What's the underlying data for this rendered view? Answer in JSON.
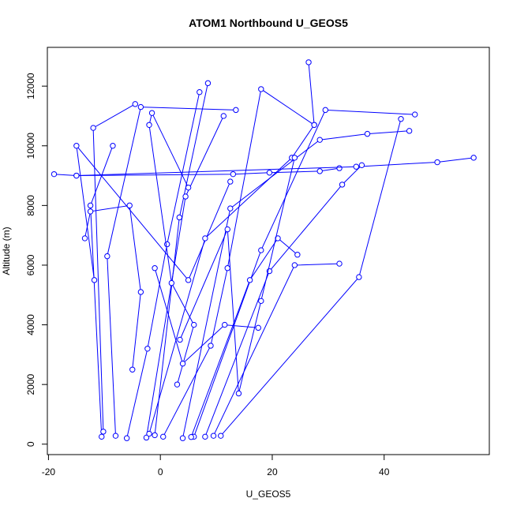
{
  "chart_data": {
    "type": "line",
    "title": "ATOM1 Northbound U_GEOS5",
    "xlabel": "U_GEOS5",
    "ylabel": "Altitude (m)",
    "xlim": [
      -20.2,
      58.8
    ],
    "ylim": [
      -350,
      13300
    ],
    "xticks": [
      "-20",
      "0",
      "20",
      "40"
    ],
    "yticks": [
      "0",
      "2000",
      "4000",
      "6000",
      "8000",
      "10000",
      "12000"
    ],
    "color": "#0000ff",
    "marker": "open-circle",
    "series": [
      {
        "x": [
          -1.0,
          3.4,
          8.5
        ],
        "y": [
          300,
          7600,
          12100
        ]
      },
      {
        "x": [
          -2.5,
          4.5,
          11.3
        ],
        "y": [
          220,
          8300,
          11000
        ]
      },
      {
        "x": [
          -6.0,
          -2.3,
          1.2,
          7.0
        ],
        "y": [
          200,
          3200,
          6700,
          11800
        ]
      },
      {
        "x": [
          -10.5,
          -12.5,
          -8.5
        ],
        "y": [
          250,
          8000,
          10000
        ]
      },
      {
        "x": [
          -10.2,
          -12.0,
          -4.5
        ],
        "y": [
          420,
          10600,
          11400
        ]
      },
      {
        "x": [
          -11.8,
          -15.0,
          5.0,
          12.5
        ],
        "y": [
          5500,
          10000,
          5500,
          8800
        ]
      },
      {
        "x": [
          -8.0,
          -9.5,
          -3.5,
          13.5
        ],
        "y": [
          280,
          6300,
          11300,
          11200
        ]
      },
      {
        "x": [
          -19.0,
          -15.0,
          13.0,
          19.5,
          28.5,
          32.0
        ],
        "y": [
          9050,
          9000,
          9050,
          9100,
          9150,
          9250
        ]
      },
      {
        "x": [
          -15.0,
          35.0,
          49.5,
          56.0
        ],
        "y": [
          9000,
          9300,
          9450,
          9600
        ]
      },
      {
        "x": [
          0.5,
          9.0,
          12.0,
          18.0,
          27.5
        ],
        "y": [
          250,
          3300,
          5900,
          11900,
          10700
        ]
      },
      {
        "x": [
          -2.0,
          8.0,
          23.5,
          27.5,
          26.5
        ],
        "y": [
          350,
          6900,
          9600,
          10700,
          12800
        ]
      },
      {
        "x": [
          4.0,
          12.5,
          28.5,
          37.0,
          44.5
        ],
        "y": [
          200,
          7900,
          10200,
          10400,
          10500
        ]
      },
      {
        "x": [
          6.0,
          18.0,
          29.5,
          45.5
        ],
        "y": [
          250,
          6500,
          11200,
          11050
        ]
      },
      {
        "x": [
          8.0,
          19.5,
          32.5,
          36.0
        ],
        "y": [
          250,
          5800,
          8700,
          9350
        ]
      },
      {
        "x": [
          9.5,
          24.0,
          32.0
        ],
        "y": [
          280,
          6000,
          6050
        ]
      },
      {
        "x": [
          10.8,
          35.5,
          43.0
        ],
        "y": [
          280,
          5600,
          10900
        ]
      },
      {
        "x": [
          5.5,
          16.0,
          21.0,
          24.5
        ],
        "y": [
          240,
          5500,
          6900,
          6350
        ]
      },
      {
        "x": [
          -5.0,
          -3.5,
          -5.5,
          -12.5,
          -13.5
        ],
        "y": [
          2500,
          5100,
          8000,
          7800,
          6900
        ]
      },
      {
        "x": [
          3.0,
          6.0,
          2.0,
          -2.0,
          -1.5,
          5.0
        ],
        "y": [
          2000,
          4000,
          5400,
          10700,
          11100,
          8600
        ]
      },
      {
        "x": [
          -1.0,
          4.0,
          11.5,
          17.5
        ],
        "y": [
          5900,
          2700,
          4000,
          3900
        ]
      },
      {
        "x": [
          3.5,
          12.0,
          14.0,
          18.0,
          24.0
        ],
        "y": [
          3500,
          7200,
          1700,
          4800,
          9600
        ]
      }
    ]
  }
}
